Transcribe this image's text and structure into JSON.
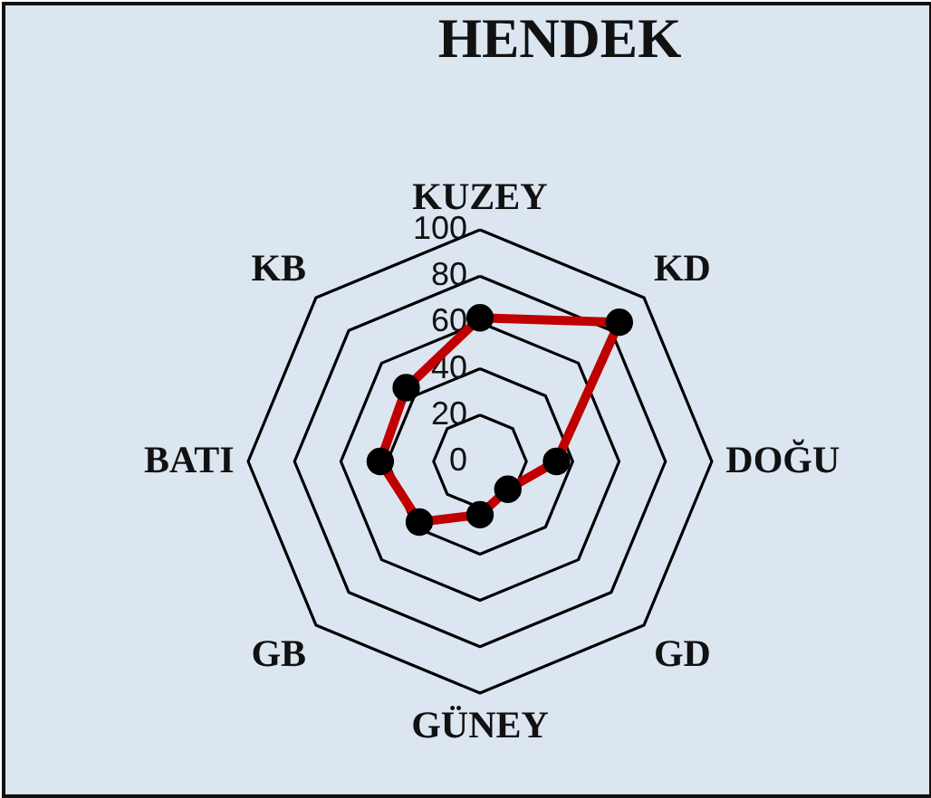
{
  "chart_data": {
    "type": "radar",
    "title": "HENDEK",
    "categories": [
      "KUZEY",
      "KD",
      "DOĞU",
      "GD",
      "GÜNEY",
      "GB",
      "BATI",
      "KB"
    ],
    "series": [
      {
        "color": "#c00000",
        "values": [
          62,
          85,
          33,
          17,
          23,
          37,
          43,
          45
        ]
      }
    ],
    "ylim": [
      0,
      100
    ],
    "yticks": [
      0,
      20,
      40,
      60,
      80,
      100
    ],
    "grid": true,
    "marker": "circle"
  }
}
